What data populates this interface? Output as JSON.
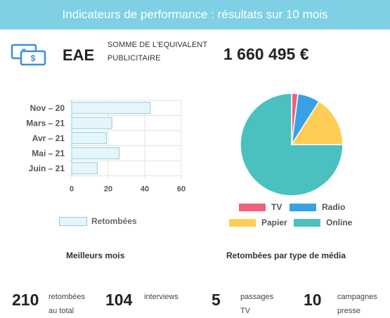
{
  "header": {
    "title": "Indicateurs de performance : résultats sur 10 mois"
  },
  "ad_value": {
    "icon": "money-bills-icon",
    "code": "EAE",
    "label": "SOMME DE L'EQUIVALENT PUBLICITAIRE",
    "value": "1 660 495 €"
  },
  "chart_data": [
    {
      "type": "bar",
      "orientation": "horizontal",
      "categories": [
        "Nov – 20",
        "Mars – 21",
        "Avr – 21",
        "Mai – 21",
        "Juin – 21"
      ],
      "series": [
        {
          "name": "Retombées",
          "values": [
            43,
            22,
            19,
            26,
            14
          ],
          "color": "#8ccfe3"
        }
      ],
      "xticks": [
        "0",
        "20",
        "40",
        "60"
      ],
      "xlim": [
        0,
        60
      ],
      "grid": true,
      "legend": "bottom",
      "caption": "Meilleurs mois"
    },
    {
      "type": "pie",
      "categories": [
        "TV",
        "Radio",
        "Papier",
        "Online"
      ],
      "values": [
        2,
        7,
        16,
        75
      ],
      "colors": [
        "#f0627c",
        "#3aa0e6",
        "#fdcd56",
        "#4bc0c0"
      ],
      "legend": "bottom",
      "caption": "Retombées par type de média"
    }
  ],
  "stats": [
    {
      "number": "210",
      "label_line1": "retombées",
      "label_line2": "au total"
    },
    {
      "number": "104",
      "label_line1": "interviews",
      "label_line2": ""
    },
    {
      "number": "5",
      "label_line1": "passages",
      "label_line2": "TV"
    },
    {
      "number": "10",
      "label_line1": "campagnes",
      "label_line2": "presse"
    }
  ]
}
